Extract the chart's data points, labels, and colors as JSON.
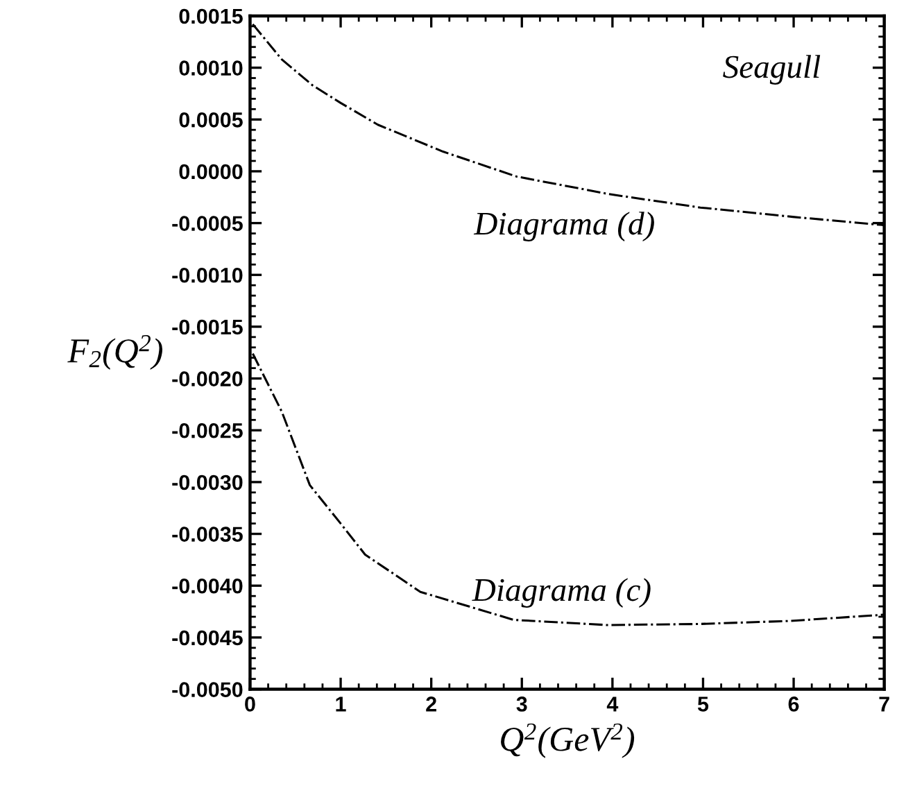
{
  "chart_data": {
    "type": "line",
    "xlabel": "Q$^{2}$(GeV$^{2}$)",
    "ylabel": "F$_{2}$(Q$^{2}$)",
    "annotations": [
      "Seagull"
    ],
    "xlim": [
      0,
      7
    ],
    "xticks": [
      0,
      1,
      2,
      3,
      4,
      5,
      6,
      7
    ],
    "ylim": [
      -0.005,
      0.0015
    ],
    "yticks": [
      {
        "value": 0.0015,
        "label": "0.0015"
      },
      {
        "value": 0.001,
        "label": "0.0010"
      },
      {
        "value": 0.0005,
        "label": "0.0005"
      },
      {
        "value": 0,
        "label": "0.0000"
      },
      {
        "value": -0.0005,
        "label": "-0.0005"
      },
      {
        "value": -0.001,
        "label": "-0.0010"
      },
      {
        "value": -0.0015,
        "label": "-0.0015"
      },
      {
        "value": -0.002,
        "label": "-0.0020"
      },
      {
        "value": -0.0025,
        "label": "-0.0025"
      },
      {
        "value": -0.003,
        "label": "-0.0030"
      },
      {
        "value": -0.0035,
        "label": "-0.0035"
      },
      {
        "value": -0.004,
        "label": "-0.0040"
      },
      {
        "value": -0.0045,
        "label": "-0.0045"
      },
      {
        "value": -0.005,
        "label": "-0.0050"
      }
    ],
    "grid": false,
    "legend": false,
    "marker": "none",
    "line_style": "dashdot",
    "series": [
      {
        "name": "Diagrama (d)",
        "color": "#000000",
        "x": [
          0.03,
          0.35,
          0.69,
          1.0,
          1.41,
          2.13,
          2.94,
          3.96,
          4.97,
          5.99,
          7.0
        ],
        "values": [
          0.00142,
          0.00108,
          0.00083,
          0.00066,
          0.00045,
          0.00019,
          -5e-05,
          -0.00022,
          -0.00035,
          -0.00044,
          -0.00052
        ]
      },
      {
        "name": "Diagrama (c)",
        "color": "#000000",
        "x": [
          0.03,
          0.35,
          0.66,
          1.0,
          1.27,
          1.88,
          2.91,
          3.94,
          4.95,
          5.97,
          7.0
        ],
        "values": [
          -0.00176,
          -0.00232,
          -0.00303,
          -0.0034,
          -0.0037,
          -0.00406,
          -0.00433,
          -0.00438,
          -0.00437,
          -0.00434,
          -0.00428
        ]
      }
    ]
  }
}
